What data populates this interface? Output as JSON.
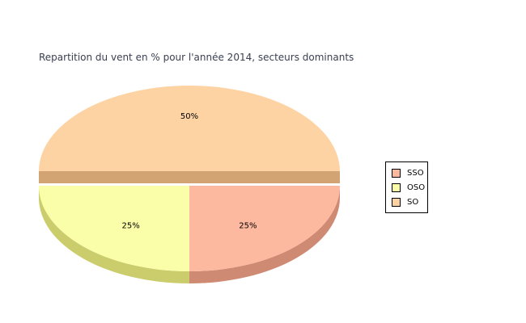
{
  "chart_data": {
    "type": "pie",
    "title": "Repartition du vent en % pour l'année 2014, secteurs dominants",
    "three_d": true,
    "legend_position": "right",
    "slices": [
      {
        "label": "SSO",
        "value": 25,
        "data_label": "25%",
        "color": "#fdb8a0",
        "side_color": "#cf8a74"
      },
      {
        "label": "OSO",
        "value": 25,
        "data_label": "25%",
        "color": "#fbfea8",
        "side_color": "#cbcd6c"
      },
      {
        "label": "SO",
        "value": 50,
        "data_label": "50%",
        "color": "#fed3a4",
        "side_color": "#d2a473",
        "exploded": true
      }
    ]
  }
}
